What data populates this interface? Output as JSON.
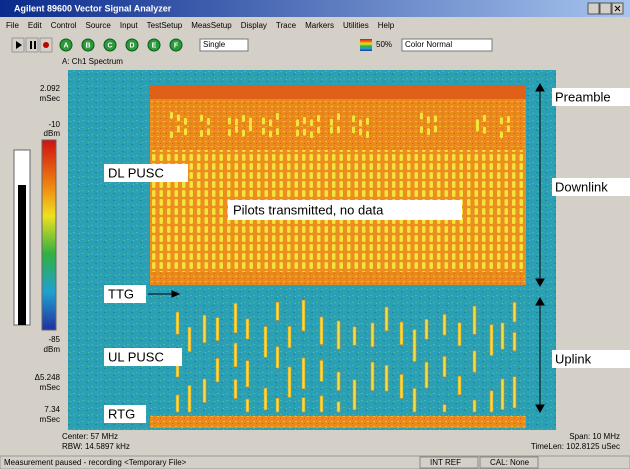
{
  "window": {
    "title": "Agilent 89600 Vector Signal Analyzer"
  },
  "menu": [
    "File",
    "Edit",
    "Control",
    "Source",
    "Input",
    "TestSetup",
    "MeasSetup",
    "Display",
    "Trace",
    "Markers",
    "Utilities",
    "Help"
  ],
  "toolbar": {
    "buttons": [
      "A",
      "B",
      "C",
      "D",
      "E",
      "F"
    ],
    "mode": "Single",
    "zoom": "50%",
    "color_map": "Color Normal"
  },
  "trace": {
    "title": "A: Ch1 Spectrum",
    "scale": [
      "2.092",
      "mSec",
      "-10",
      "dBm",
      "-85",
      "dBm",
      "Δ5.248",
      "mSec",
      "7.34",
      "mSec"
    ],
    "center": "Center: 57 MHz",
    "rbw": "RBW: 14.5897 kHz",
    "span": "Span: 10 MHz",
    "timelen": "TimeLen: 102.8125 uSec"
  },
  "annotations": {
    "dl_pusc": "DL PUSC",
    "pilots": "Pilots transmitted, no data",
    "ttg": "TTG",
    "ul_pusc": "UL PUSC",
    "rtg": "RTG",
    "preamble": "Preamble",
    "downlink": "Downlink",
    "uplink": "Uplink"
  },
  "status": {
    "message": "Measurement paused - recording <Temporary File>",
    "ref": "INT REF",
    "cal": "CAL: None"
  }
}
